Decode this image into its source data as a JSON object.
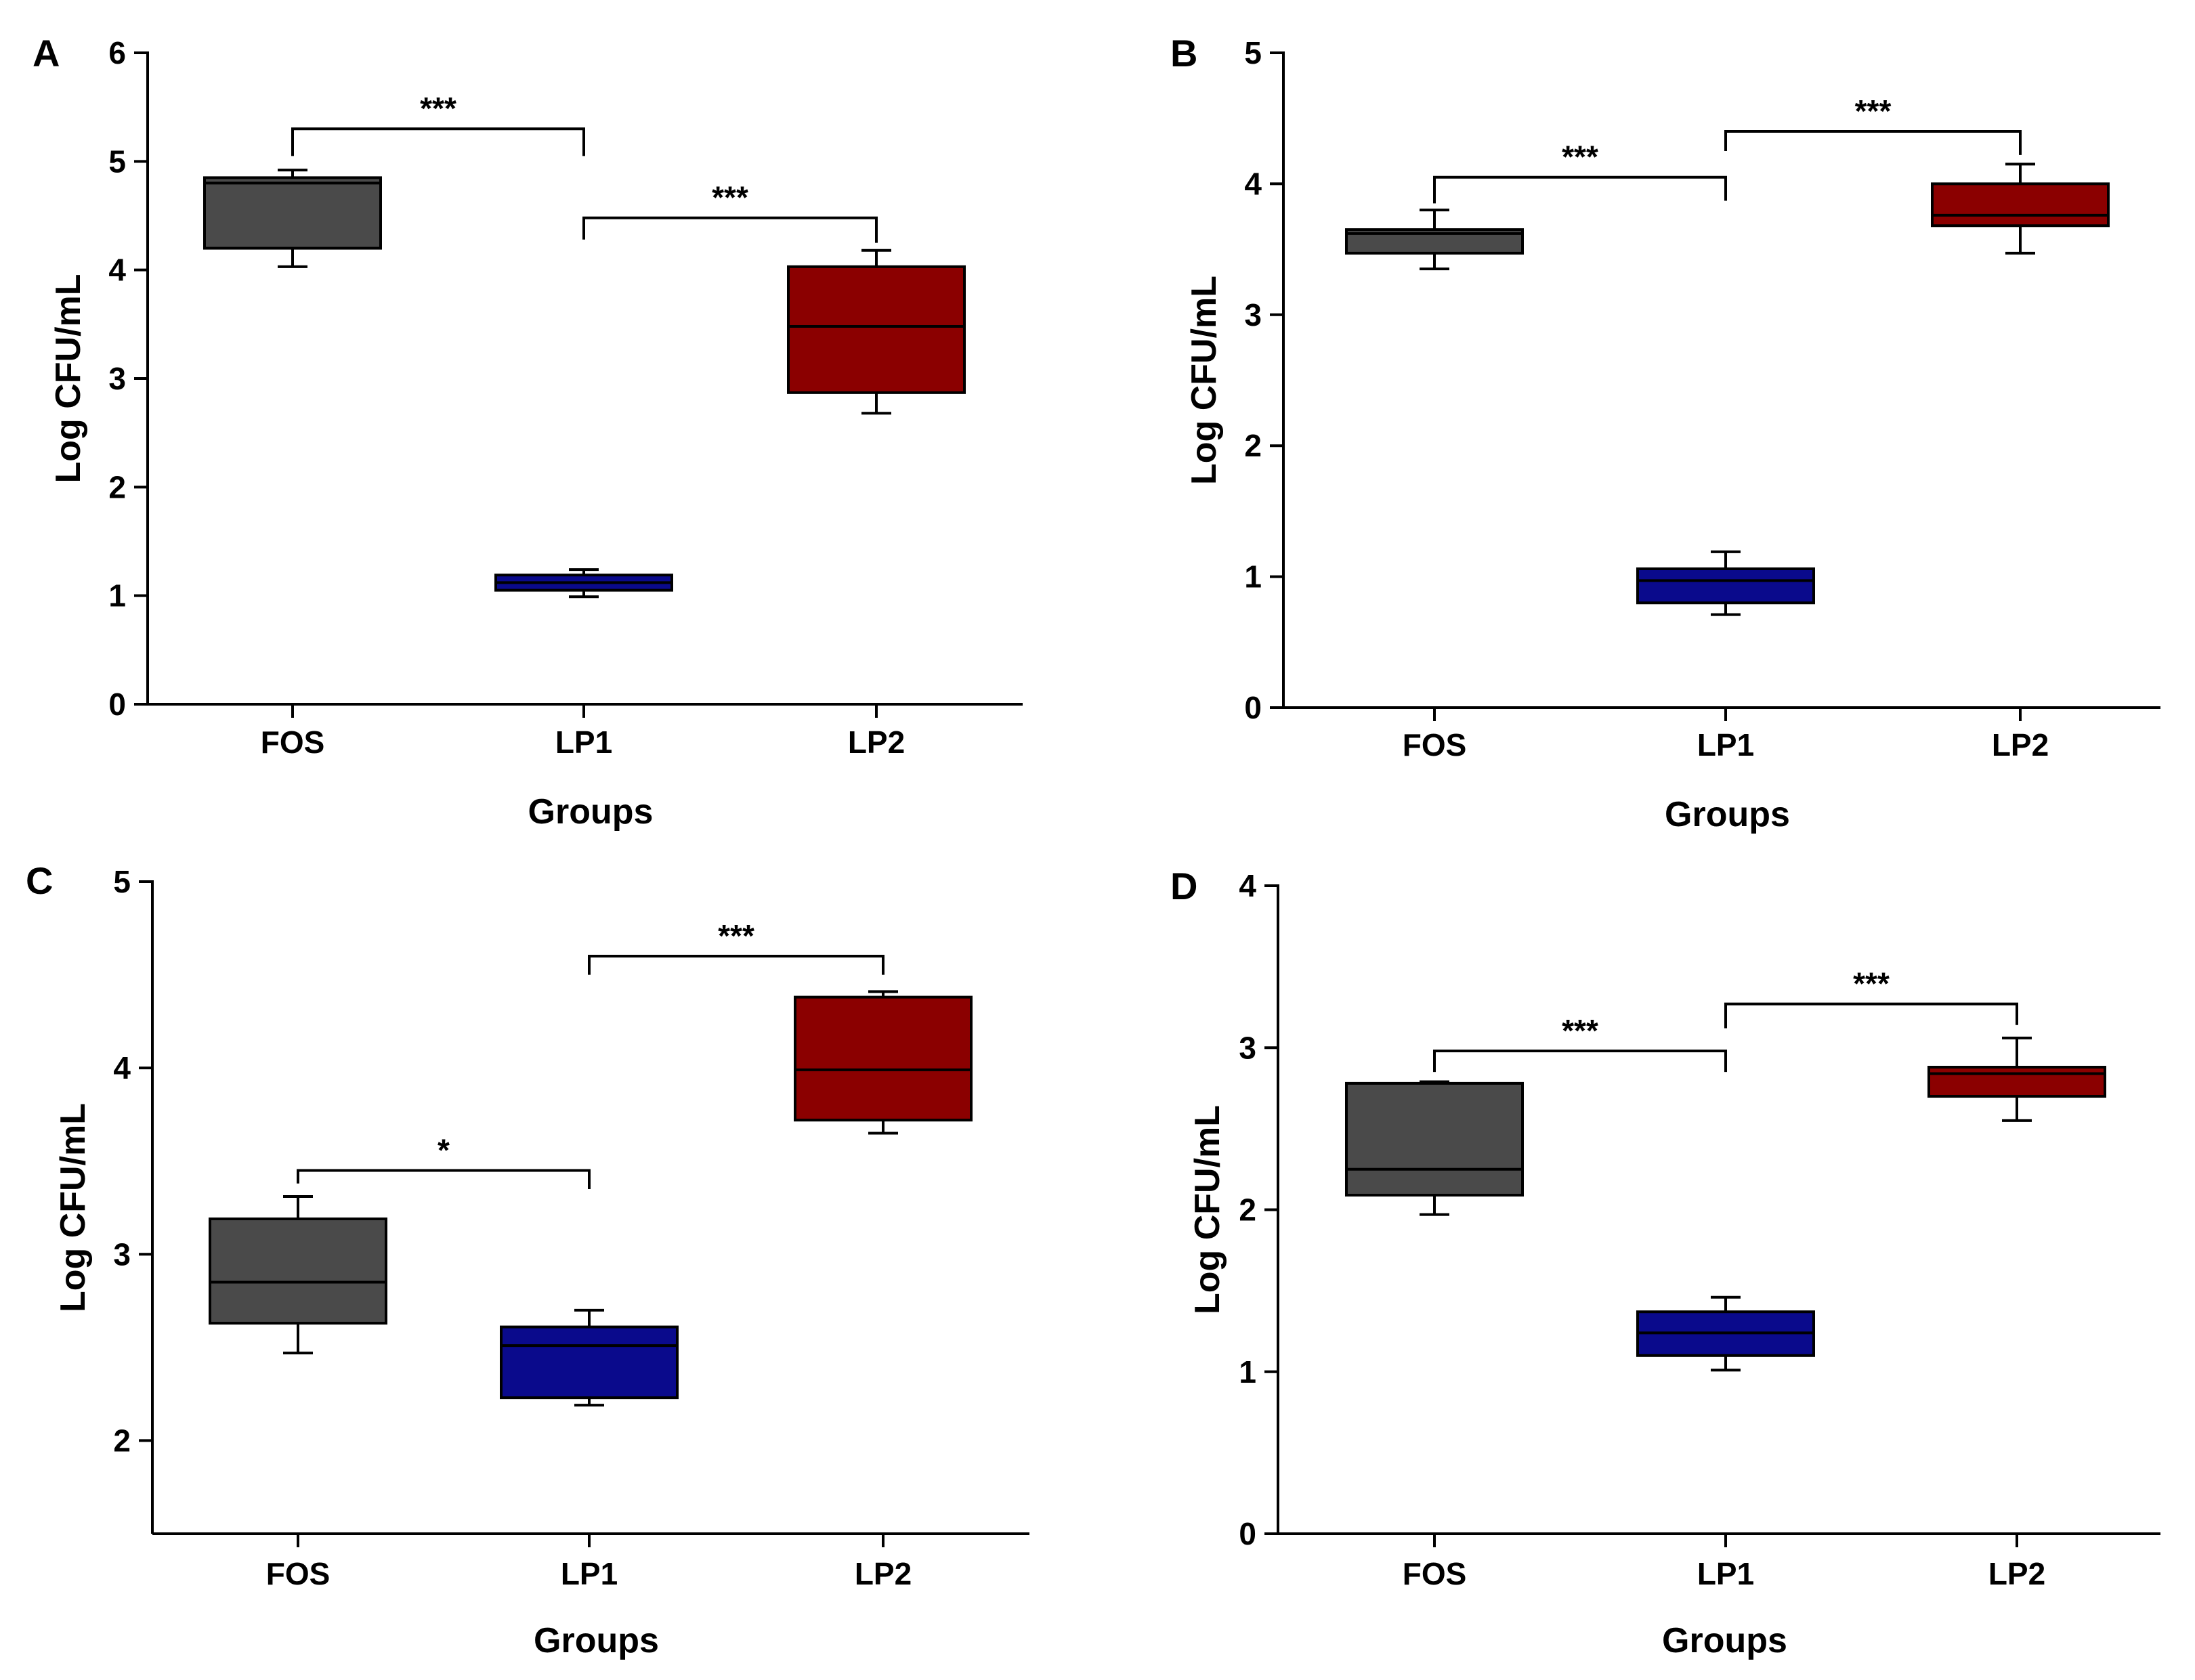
{
  "figure": {
    "panels": [
      "A",
      "B",
      "C",
      "D"
    ]
  },
  "chart_data": [
    {
      "panel": "A",
      "type": "box",
      "xlabel": "Groups",
      "ylabel": "Log CFU/mL",
      "ylim": [
        0,
        6
      ],
      "yticks": [
        "0",
        "1",
        "2",
        "3",
        "4",
        "5",
        "6"
      ],
      "categories": [
        "FOS",
        "LP1",
        "LP2"
      ],
      "colors": [
        "#4a4a4a",
        "#0a0a8c",
        "#8b0000"
      ],
      "boxes": [
        {
          "group": "FOS",
          "min": 4.03,
          "q1": 4.2,
          "median": 4.8,
          "q3": 4.85,
          "max": 4.92
        },
        {
          "group": "LP1",
          "min": 0.99,
          "q1": 1.05,
          "median": 1.12,
          "q3": 1.19,
          "max": 1.24
        },
        {
          "group": "LP2",
          "min": 2.68,
          "q1": 2.87,
          "median": 3.48,
          "q3": 4.03,
          "max": 4.18
        }
      ],
      "significance": [
        {
          "from": "FOS",
          "to": "LP1",
          "label": "***",
          "level": 5.3,
          "left_drop": 5.05,
          "right_drop": 5.05
        },
        {
          "from": "LP1",
          "to": "LP2",
          "label": "***",
          "level": 4.48,
          "left_drop": 4.28,
          "right_drop": 4.25
        }
      ]
    },
    {
      "panel": "B",
      "type": "box",
      "xlabel": "Groups",
      "ylabel": "Log CFU/mL",
      "ylim": [
        0,
        5
      ],
      "yticks": [
        "0",
        "1",
        "2",
        "3",
        "4",
        "5"
      ],
      "categories": [
        "FOS",
        "LP1",
        "LP2"
      ],
      "colors": [
        "#4a4a4a",
        "#0a0a8c",
        "#8b0000"
      ],
      "boxes": [
        {
          "group": "FOS",
          "min": 3.35,
          "q1": 3.47,
          "median": 3.62,
          "q3": 3.65,
          "max": 3.8
        },
        {
          "group": "LP1",
          "min": 0.71,
          "q1": 0.8,
          "median": 0.97,
          "q3": 1.06,
          "max": 1.19
        },
        {
          "group": "LP2",
          "min": 3.47,
          "q1": 3.68,
          "median": 3.76,
          "q3": 4.0,
          "max": 4.15
        }
      ],
      "significance": [
        {
          "from": "FOS",
          "to": "LP1",
          "label": "***",
          "level": 4.05,
          "left_drop": 3.85,
          "right_drop": 3.87
        },
        {
          "from": "LP1",
          "to": "LP2",
          "label": "***",
          "level": 4.4,
          "left_drop": 4.25,
          "right_drop": 4.22
        }
      ]
    },
    {
      "panel": "C",
      "type": "box",
      "xlabel": "Groups",
      "ylabel": "Log CFU/mL",
      "ylim": [
        1.5,
        5
      ],
      "yticks": [
        "2",
        "3",
        "4",
        "5"
      ],
      "ytick_values": [
        2,
        3,
        4,
        5
      ],
      "categories": [
        "FOS",
        "LP1",
        "LP2"
      ],
      "colors": [
        "#4a4a4a",
        "#0a0a8c",
        "#8b0000"
      ],
      "boxes": [
        {
          "group": "FOS",
          "min": 2.47,
          "q1": 2.63,
          "median": 2.85,
          "q3": 3.19,
          "max": 3.31
        },
        {
          "group": "LP1",
          "min": 2.19,
          "q1": 2.23,
          "median": 2.51,
          "q3": 2.61,
          "max": 2.7
        },
        {
          "group": "LP2",
          "min": 3.65,
          "q1": 3.72,
          "median": 3.99,
          "q3": 4.38,
          "max": 4.41
        }
      ],
      "significance": [
        {
          "from": "FOS",
          "to": "LP1",
          "label": "*",
          "level": 3.45,
          "left_drop": 3.38,
          "right_drop": 3.35
        },
        {
          "from": "LP1",
          "to": "LP2",
          "label": "***",
          "level": 4.6,
          "left_drop": 4.5,
          "right_drop": 4.5
        }
      ]
    },
    {
      "panel": "D",
      "type": "box",
      "xlabel": "Groups",
      "ylabel": "Log CFU/mL",
      "ylim": [
        0,
        4
      ],
      "yticks": [
        "0",
        "1",
        "2",
        "3",
        "4"
      ],
      "categories": [
        "FOS",
        "LP1",
        "LP2"
      ],
      "colors": [
        "#4a4a4a",
        "#0a0a8c",
        "#8b0000"
      ],
      "boxes": [
        {
          "group": "FOS",
          "min": 1.97,
          "q1": 2.09,
          "median": 2.25,
          "q3": 2.78,
          "max": 2.79
        },
        {
          "group": "LP1",
          "min": 1.01,
          "q1": 1.1,
          "median": 1.24,
          "q3": 1.37,
          "max": 1.46
        },
        {
          "group": "LP2",
          "min": 2.55,
          "q1": 2.7,
          "median": 2.84,
          "q3": 2.88,
          "max": 3.06
        }
      ],
      "significance": [
        {
          "from": "FOS",
          "to": "LP1",
          "label": "***",
          "level": 2.98,
          "left_drop": 2.85,
          "right_drop": 2.85
        },
        {
          "from": "LP1",
          "to": "LP2",
          "label": "***",
          "level": 3.27,
          "left_drop": 3.12,
          "right_drop": 3.14
        }
      ]
    }
  ]
}
